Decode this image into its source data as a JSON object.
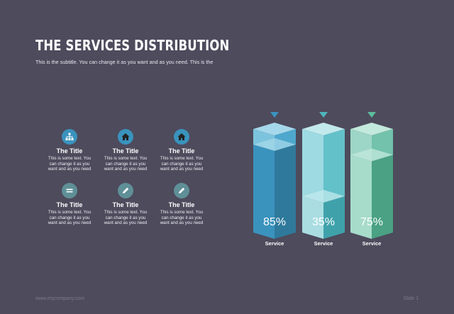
{
  "slide": {
    "title": "THE SERVICES DISTRIBUTION",
    "subtitle": "This is the subtitle. You can change it as you want and as you need. This is the",
    "footer_url": "www.mycompany.com",
    "footer_slide": "Slide 1"
  },
  "features": [
    {
      "icon": "sitemap-icon",
      "color": "#3a93bd",
      "title": "The Title",
      "text": "This is some text. You can change it as you want and as you need"
    },
    {
      "icon": "home-icon",
      "color": "#3a93bd",
      "title": "The Title",
      "text": "This is some text. You can change it as you want and as you need"
    },
    {
      "icon": "home-icon",
      "color": "#3a93bd",
      "title": "The Title",
      "text": "This is some text. You can change it as you want and as you need"
    },
    {
      "icon": "list-icon",
      "color": "#5f8f97",
      "title": "The Title",
      "text": "This is some text. You can change it as you want and as you need"
    },
    {
      "icon": "pencil-icon",
      "color": "#5f8f97",
      "title": "The Title",
      "text": "This is some text. You can change it as you want and as you need"
    },
    {
      "icon": "pencil-icon",
      "color": "#5f8f97",
      "title": "The Title",
      "text": "This is some text. You can change it as you want and as you need"
    }
  ],
  "chart_data": {
    "type": "bar",
    "categories": [
      "Service",
      "Service",
      "Service"
    ],
    "values": [
      85,
      35,
      75
    ],
    "value_labels": [
      "85%",
      "35%",
      "75%"
    ],
    "ylim": [
      0,
      100
    ],
    "title": "",
    "xlabel": "",
    "ylabel": "",
    "colors": [
      {
        "front_light": "#7cc4dd",
        "side_light": "#4ea8cd",
        "front_dark": "#3a93bd",
        "side_dark": "#2f799c",
        "top": "#a5d8ea",
        "marker": "#3a93bd"
      },
      {
        "front_light": "#9ddae1",
        "side_light": "#63c1ca",
        "front_dark": "#a9dde2",
        "side_dark": "#3fa2ab",
        "top": "#c2e9ec",
        "marker": "#4fb4bc"
      },
      {
        "front_light": "#9dd6c6",
        "side_light": "#72c2ac",
        "front_dark": "#a7dccb",
        "side_dark": "#4aa183",
        "top": "#c3e8dc",
        "marker": "#5dbd9d"
      }
    ]
  }
}
